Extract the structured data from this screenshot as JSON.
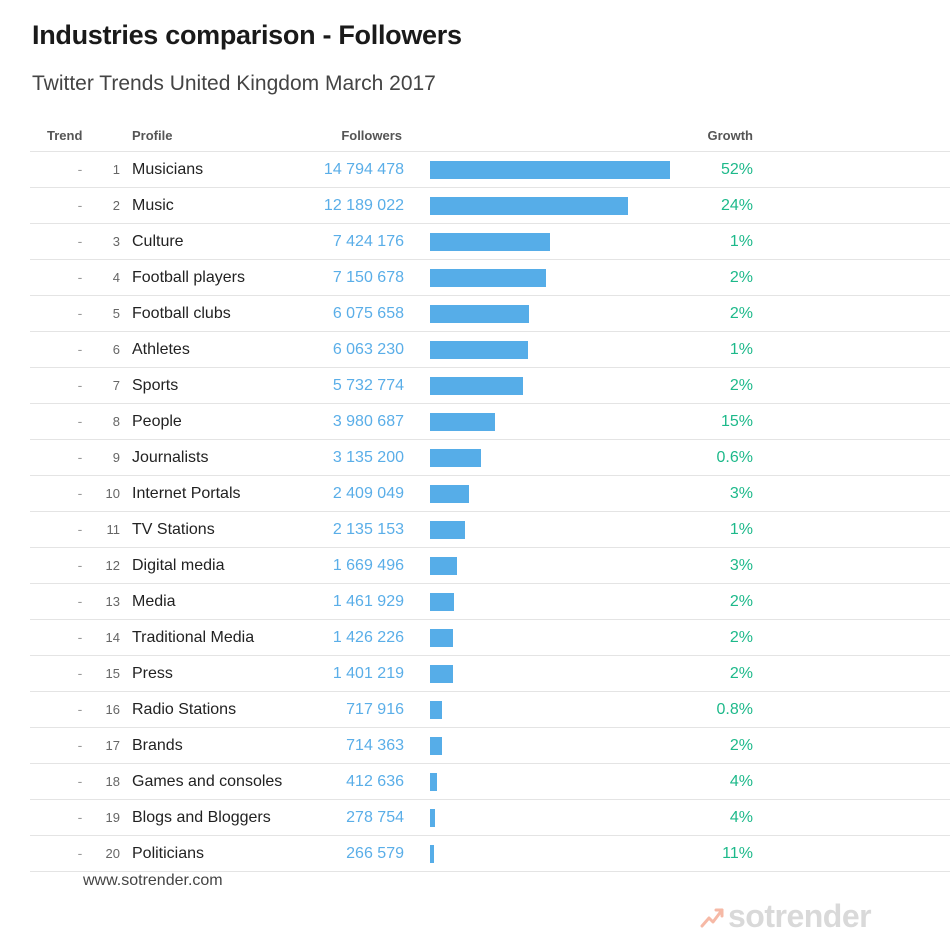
{
  "header": {
    "title": "Industries comparison - Followers",
    "subtitle": "Twitter Trends United Kingdom March 2017"
  },
  "columns": {
    "trend": "Trend",
    "profile": "Profile",
    "followers": "Followers",
    "growth": "Growth"
  },
  "chart_data": {
    "type": "bar",
    "title": "Industries comparison - Followers",
    "subtitle": "Twitter Trends United Kingdom March 2017",
    "orientation": "horizontal",
    "bar_color": "#56ade8",
    "followers_color": "#5aaee8",
    "growth_color": "#1db98a",
    "xlim": [
      0,
      14794478
    ],
    "rows": [
      {
        "trend": "-",
        "rank": "1",
        "profile": "Musicians",
        "followers": 14794478,
        "followers_label": "14 794 478",
        "growth": "52%"
      },
      {
        "trend": "-",
        "rank": "2",
        "profile": "Music",
        "followers": 12189022,
        "followers_label": "12 189 022",
        "growth": "24%"
      },
      {
        "trend": "-",
        "rank": "3",
        "profile": "Culture",
        "followers": 7424176,
        "followers_label": "7 424 176",
        "growth": "1%"
      },
      {
        "trend": "-",
        "rank": "4",
        "profile": "Football players",
        "followers": 7150678,
        "followers_label": "7 150 678",
        "growth": "2%"
      },
      {
        "trend": "-",
        "rank": "5",
        "profile": "Football clubs",
        "followers": 6075658,
        "followers_label": "6 075 658",
        "growth": "2%"
      },
      {
        "trend": "-",
        "rank": "6",
        "profile": "Athletes",
        "followers": 6063230,
        "followers_label": "6 063 230",
        "growth": "1%"
      },
      {
        "trend": "-",
        "rank": "7",
        "profile": "Sports",
        "followers": 5732774,
        "followers_label": "5 732 774",
        "growth": "2%"
      },
      {
        "trend": "-",
        "rank": "8",
        "profile": "People",
        "followers": 3980687,
        "followers_label": "3 980 687",
        "growth": "15%"
      },
      {
        "trend": "-",
        "rank": "9",
        "profile": "Journalists",
        "followers": 3135200,
        "followers_label": "3 135 200",
        "growth": "0.6%"
      },
      {
        "trend": "-",
        "rank": "10",
        "profile": "Internet Portals",
        "followers": 2409049,
        "followers_label": "2 409 049",
        "growth": "3%"
      },
      {
        "trend": "-",
        "rank": "11",
        "profile": "TV Stations",
        "followers": 2135153,
        "followers_label": "2 135 153",
        "growth": "1%"
      },
      {
        "trend": "-",
        "rank": "12",
        "profile": "Digital media",
        "followers": 1669496,
        "followers_label": "1 669 496",
        "growth": "3%"
      },
      {
        "trend": "-",
        "rank": "13",
        "profile": "Media",
        "followers": 1461929,
        "followers_label": "1 461 929",
        "growth": "2%"
      },
      {
        "trend": "-",
        "rank": "14",
        "profile": "Traditional Media",
        "followers": 1426226,
        "followers_label": "1 426 226",
        "growth": "2%"
      },
      {
        "trend": "-",
        "rank": "15",
        "profile": "Press",
        "followers": 1401219,
        "followers_label": "1 401 219",
        "growth": "2%"
      },
      {
        "trend": "-",
        "rank": "16",
        "profile": "Radio Stations",
        "followers": 717916,
        "followers_label": "717 916",
        "growth": "0.8%"
      },
      {
        "trend": "-",
        "rank": "17",
        "profile": "Brands",
        "followers": 714363,
        "followers_label": "714 363",
        "growth": "2%"
      },
      {
        "trend": "-",
        "rank": "18",
        "profile": "Games and consoles",
        "followers": 412636,
        "followers_label": "412 636",
        "growth": "4%"
      },
      {
        "trend": "-",
        "rank": "19",
        "profile": "Blogs and Bloggers",
        "followers": 278754,
        "followers_label": "278 754",
        "growth": "4%"
      },
      {
        "trend": "-",
        "rank": "20",
        "profile": "Politicians",
        "followers": 266579,
        "followers_label": "266 579",
        "growth": "11%"
      }
    ]
  },
  "footer": {
    "source": "www.sotrender.com",
    "brand": "sotrender",
    "brand_icon": "sotrender-logo-icon"
  }
}
